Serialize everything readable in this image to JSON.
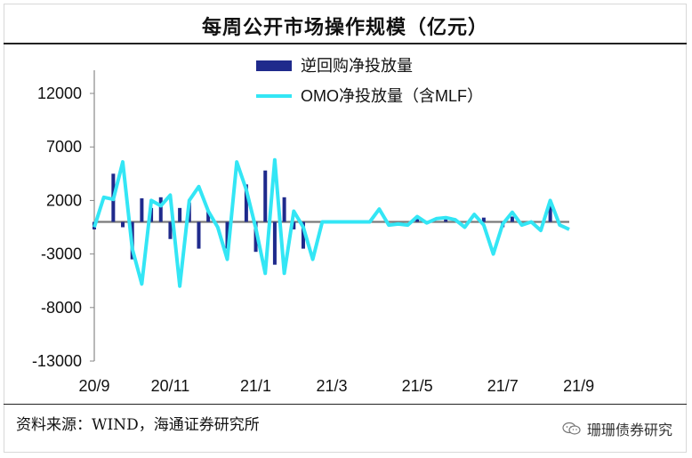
{
  "title": "每周公开市场操作规模（亿元）",
  "source": "资料来源：WIND，海通证券研究所",
  "watermark": "珊珊债券研究",
  "colors": {
    "bar": "#1f2a8c",
    "line": "#33e6f5",
    "axis": "#888888",
    "text": "#111111"
  },
  "chart_data": {
    "type": "bar",
    "title": "每周公开市场操作规模（亿元）",
    "ylim": [
      -13000,
      13000
    ],
    "yticks": [
      12000,
      7000,
      2000,
      -3000,
      -8000,
      -13000
    ],
    "ytick_labels": [
      "12000",
      "7000",
      "2000",
      "-3000",
      "-8000",
      "-13000"
    ],
    "xtick_labels": [
      "20/9",
      "20/11",
      "21/1",
      "21/3",
      "21/5",
      "21/7",
      "21/9"
    ],
    "xtick_positions": [
      0,
      8,
      17,
      25,
      34,
      43,
      51
    ],
    "legend": [
      "逆回购净投放量",
      "OMO净投放量（含MLF）"
    ],
    "series": [
      {
        "name": "逆回购净投放量",
        "type": "bar",
        "values": [
          -700,
          0,
          4500,
          -500,
          -3500,
          2200,
          1300,
          2300,
          -1600,
          1300,
          1800,
          -2500,
          1000,
          0,
          -2500,
          0,
          3500,
          -2800,
          4800,
          -4000,
          2300,
          -700,
          -2500,
          0,
          0,
          0,
          0,
          0,
          0,
          0,
          0,
          0,
          0,
          0,
          300,
          -200,
          0,
          300,
          0,
          0,
          0,
          400,
          0,
          -500,
          500,
          0,
          0,
          0,
          1500,
          0,
          0
        ]
      },
      {
        "name": "OMO净投放量（含MLF）",
        "type": "line",
        "values": [
          -500,
          2300,
          2100,
          5600,
          -2500,
          -5800,
          2000,
          1500,
          2500,
          -6000,
          2000,
          3300,
          1000,
          -500,
          -3500,
          5600,
          3000,
          -600,
          -4800,
          5800,
          -4800,
          1000,
          -500,
          -3500,
          0,
          0,
          0,
          0,
          0,
          0,
          1200,
          -300,
          -200,
          -300,
          500,
          -100,
          300,
          400,
          200,
          -500,
          700,
          -300,
          -3000,
          -200,
          900,
          -300,
          0,
          -800,
          2000,
          -300,
          -700
        ]
      }
    ]
  }
}
